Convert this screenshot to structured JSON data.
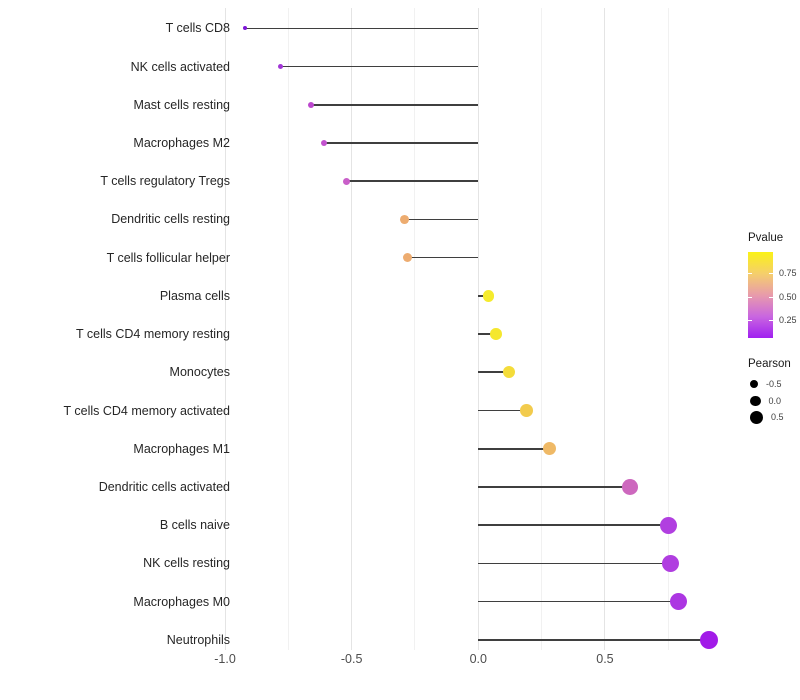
{
  "chart_data": {
    "type": "scatter",
    "subtype": "lollipop",
    "title": "",
    "xlabel": "",
    "ylabel": "",
    "xlim": [
      -1.05,
      0.85
    ],
    "grid": "vertical-only",
    "baseline_value": 0.0,
    "x_axis": {
      "ticks": [
        {
          "label": "-1.0",
          "value": -1.0
        },
        {
          "label": "-0.5",
          "value": -0.5
        },
        {
          "label": "0.0",
          "value": 0.0
        },
        {
          "label": "0.5",
          "value": 0.5
        }
      ],
      "minor_gridlines": [
        -0.75,
        -0.25,
        0.25,
        0.75
      ]
    },
    "points": [
      {
        "label": "T cells CD8",
        "pearson": -0.92,
        "color": "#7E16D8"
      },
      {
        "label": "NK cells activated",
        "pearson": -0.78,
        "color": "#A136D6"
      },
      {
        "label": "Mast cells resting",
        "pearson": -0.66,
        "color": "#BC47CE"
      },
      {
        "label": "Macrophages M2",
        "pearson": -0.61,
        "color": "#C252CE"
      },
      {
        "label": "T cells regulatory  Tregs",
        "pearson": -0.52,
        "color": "#C95FC9"
      },
      {
        "label": "Dendritic cells resting",
        "pearson": -0.29,
        "color": "#EDAC70"
      },
      {
        "label": "T cells follicular helper",
        "pearson": -0.28,
        "color": "#EDAC70"
      },
      {
        "label": "Plasma cells",
        "pearson": 0.04,
        "color": "#F5EB2D"
      },
      {
        "label": "T cells CD4 memory resting",
        "pearson": 0.07,
        "color": "#F5E72E"
      },
      {
        "label": "Monocytes",
        "pearson": 0.12,
        "color": "#F4DC3A"
      },
      {
        "label": "T cells CD4 memory activated",
        "pearson": 0.19,
        "color": "#F2CB4D"
      },
      {
        "label": "Macrophages M1",
        "pearson": 0.28,
        "color": "#EFB966"
      },
      {
        "label": "Dendritic cells activated",
        "pearson": 0.6,
        "color": "#CD68BE"
      },
      {
        "label": "B cells naive",
        "pearson": 0.75,
        "color": "#B13FE0"
      },
      {
        "label": "NK cells resting",
        "pearson": 0.76,
        "color": "#B03EE0"
      },
      {
        "label": "Macrophages M0",
        "pearson": 0.79,
        "color": "#AC36E2"
      },
      {
        "label": "Neutrophils",
        "pearson": 0.91,
        "color": "#A21BE8"
      }
    ],
    "stem_color": "#3f3f3f",
    "legend": {
      "position": "right",
      "pvalue": {
        "title": "Pvalue",
        "gradient_bottom_to_top": [
          "#A020F0",
          "#C966E0",
          "#E89BAB",
          "#F5CF6B",
          "#FAF216"
        ],
        "ticks": [
          {
            "label": "0.75",
            "frac_from_top": 0.245
          },
          {
            "label": "0.50",
            "frac_from_top": 0.518
          },
          {
            "label": "0.25",
            "frac_from_top": 0.785
          }
        ]
      },
      "pearson": {
        "title": "Pearson",
        "dot_color": "#000000",
        "items": [
          {
            "label": "-0.5",
            "diameter": 8
          },
          {
            "label": "0.0",
            "diameter": 10.5
          },
          {
            "label": "0.5",
            "diameter": 13
          }
        ]
      }
    }
  }
}
